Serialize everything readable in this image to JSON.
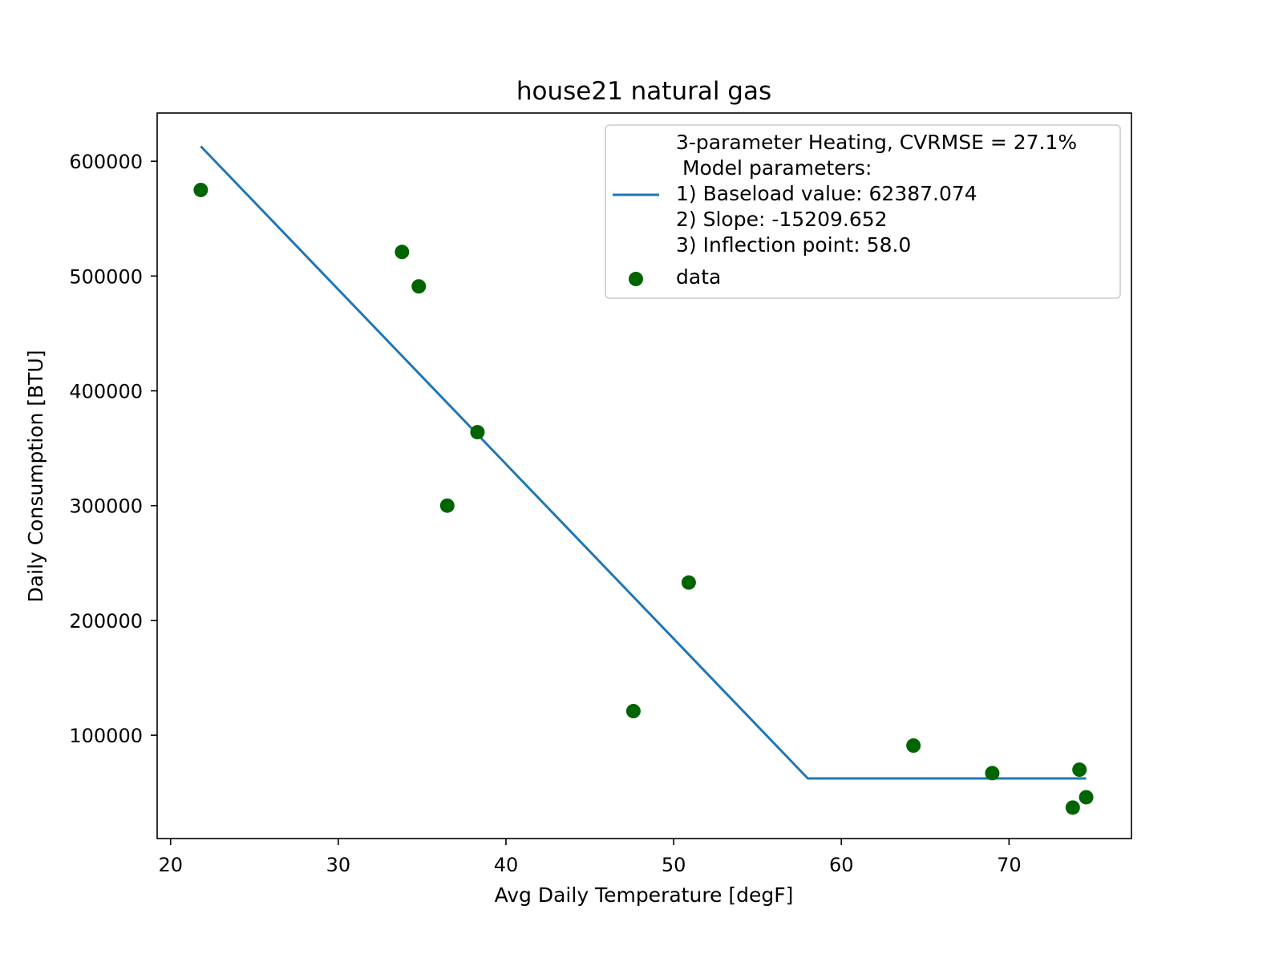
{
  "chart_data": {
    "type": "scatter",
    "title": "house21 natural gas",
    "xlabel": "Avg Daily Temperature [degF]",
    "ylabel": "Daily Consumption [BTU]",
    "xlim": [
      19.2,
      77.3
    ],
    "ylim": [
      10000,
      642000
    ],
    "xticks": [
      20,
      30,
      40,
      50,
      60,
      70
    ],
    "yticks": [
      100000,
      200000,
      300000,
      400000,
      500000,
      600000
    ],
    "xtick_labels": [
      "20",
      "30",
      "40",
      "50",
      "60",
      "70"
    ],
    "ytick_labels": [
      "100000",
      "200000",
      "300000",
      "400000",
      "500000",
      "600000"
    ],
    "grid": false,
    "legend_placement": "top-right",
    "colors": {
      "fit_line": "#1f77b4",
      "data_points": "#006400",
      "legend_border": "#cccccc"
    },
    "series": [
      {
        "name": "data",
        "type": "scatter",
        "x": [
          21.8,
          33.8,
          34.8,
          36.5,
          38.3,
          47.6,
          50.9,
          64.3,
          69.0,
          73.8,
          74.2,
          74.6
        ],
        "y": [
          575000,
          521000,
          491000,
          300000,
          364000,
          121000,
          233000,
          91000,
          67000,
          37000,
          70000,
          46000
        ]
      },
      {
        "type": "line",
        "x": [
          21.8,
          58.0,
          74.6
        ],
        "y": [
          613000,
          62387,
          62387
        ]
      }
    ],
    "legend_entries": [
      {
        "kind": "line",
        "lines": [
          "3-parameter Heating, CVRMSE = 27.1%",
          " Model parameters:",
          "1) Baseload value: 62387.074",
          "2) Slope: -15209.652",
          "3) Inflection point: 58.0"
        ]
      },
      {
        "kind": "marker",
        "lines": [
          "data"
        ]
      }
    ]
  }
}
